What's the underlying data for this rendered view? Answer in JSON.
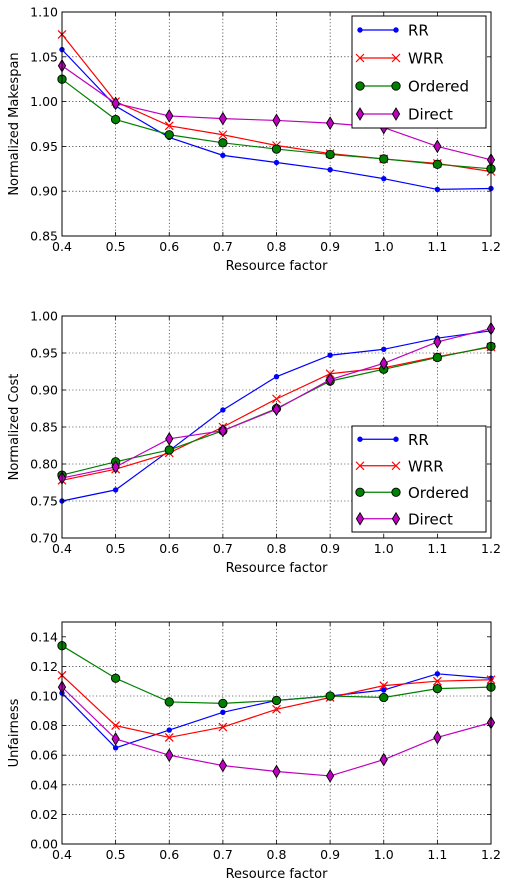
{
  "chart_data": [
    {
      "type": "line",
      "xlabel": "Resource factor",
      "ylabel": "Normalized Makespan",
      "xlim": [
        0.4,
        1.2
      ],
      "ylim": [
        0.85,
        1.1
      ],
      "xticks": [
        "0.4",
        "0.5",
        "0.6",
        "0.7",
        "0.8",
        "0.9",
        "1.0",
        "1.1",
        "1.2"
      ],
      "yticks": [
        "0.85",
        "0.90",
        "0.95",
        "1.00",
        "1.05",
        "1.10"
      ],
      "grid": true,
      "legend_position": "top-right",
      "x": [
        0.4,
        0.5,
        0.6,
        0.7,
        0.8,
        0.9,
        1.0,
        1.1,
        1.2
      ],
      "series": [
        {
          "name": "RR",
          "color": "#0000ff",
          "marker": "dot",
          "values": [
            1.058,
            0.995,
            0.96,
            0.94,
            0.932,
            0.924,
            0.914,
            0.902,
            0.903
          ]
        },
        {
          "name": "WRR",
          "color": "#ff0000",
          "marker": "x",
          "values": [
            1.075,
            1.0,
            0.973,
            0.963,
            0.951,
            0.942,
            0.936,
            0.931,
            0.922
          ]
        },
        {
          "name": "Ordered",
          "color": "#008000",
          "marker": "circle",
          "values": [
            1.025,
            0.98,
            0.963,
            0.954,
            0.947,
            0.941,
            0.936,
            0.93,
            0.925
          ]
        },
        {
          "name": "Direct",
          "color": "#bf00bf",
          "marker": "diamond",
          "values": [
            1.04,
            0.998,
            0.984,
            0.981,
            0.979,
            0.976,
            0.971,
            0.95,
            0.935
          ]
        }
      ]
    },
    {
      "type": "line",
      "xlabel": "Resource factor",
      "ylabel": "Normalized Cost",
      "xlim": [
        0.4,
        1.2
      ],
      "ylim": [
        0.7,
        1.0
      ],
      "xticks": [
        "0.4",
        "0.5",
        "0.6",
        "0.7",
        "0.8",
        "0.9",
        "1.0",
        "1.1",
        "1.2"
      ],
      "yticks": [
        "0.70",
        "0.75",
        "0.80",
        "0.85",
        "0.90",
        "0.95",
        "1.00"
      ],
      "grid": true,
      "legend_position": "bottom-right",
      "x": [
        0.4,
        0.5,
        0.6,
        0.7,
        0.8,
        0.9,
        1.0,
        1.1,
        1.2
      ],
      "series": [
        {
          "name": "RR",
          "color": "#0000ff",
          "marker": "dot",
          "values": [
            0.75,
            0.765,
            0.818,
            0.873,
            0.918,
            0.947,
            0.955,
            0.97,
            0.98
          ]
        },
        {
          "name": "WRR",
          "color": "#ff0000",
          "marker": "x",
          "values": [
            0.778,
            0.793,
            0.815,
            0.85,
            0.888,
            0.922,
            0.93,
            0.945,
            0.958
          ]
        },
        {
          "name": "Ordered",
          "color": "#008000",
          "marker": "circle",
          "values": [
            0.785,
            0.803,
            0.819,
            0.845,
            0.875,
            0.912,
            0.928,
            0.944,
            0.959
          ]
        },
        {
          "name": "Direct",
          "color": "#bf00bf",
          "marker": "diamond",
          "values": [
            0.781,
            0.796,
            0.834,
            0.845,
            0.874,
            0.914,
            0.936,
            0.965,
            0.983
          ]
        }
      ]
    },
    {
      "type": "line",
      "xlabel": "Resource factor",
      "ylabel": "Unfairness",
      "xlim": [
        0.4,
        1.2
      ],
      "ylim": [
        0.0,
        0.15
      ],
      "xticks": [
        "0.4",
        "0.5",
        "0.6",
        "0.7",
        "0.8",
        "0.9",
        "1.0",
        "1.1",
        "1.2"
      ],
      "yticks": [
        "0.00",
        "0.02",
        "0.04",
        "0.06",
        "0.08",
        "0.10",
        "0.12",
        "0.14"
      ],
      "grid": true,
      "legend_position": "none",
      "x": [
        0.4,
        0.5,
        0.6,
        0.7,
        0.8,
        0.9,
        1.0,
        1.1,
        1.2
      ],
      "series": [
        {
          "name": "RR",
          "color": "#0000ff",
          "marker": "dot",
          "values": [
            0.102,
            0.065,
            0.077,
            0.089,
            0.097,
            0.1,
            0.104,
            0.115,
            0.112
          ]
        },
        {
          "name": "WRR",
          "color": "#ff0000",
          "marker": "x",
          "values": [
            0.114,
            0.08,
            0.072,
            0.079,
            0.091,
            0.099,
            0.107,
            0.11,
            0.111
          ]
        },
        {
          "name": "Ordered",
          "color": "#008000",
          "marker": "circle",
          "values": [
            0.134,
            0.112,
            0.096,
            0.095,
            0.097,
            0.1,
            0.099,
            0.105,
            0.106
          ]
        },
        {
          "name": "Direct",
          "color": "#bf00bf",
          "marker": "diamond",
          "values": [
            0.106,
            0.071,
            0.06,
            0.053,
            0.049,
            0.046,
            0.057,
            0.072,
            0.082
          ]
        }
      ]
    }
  ]
}
